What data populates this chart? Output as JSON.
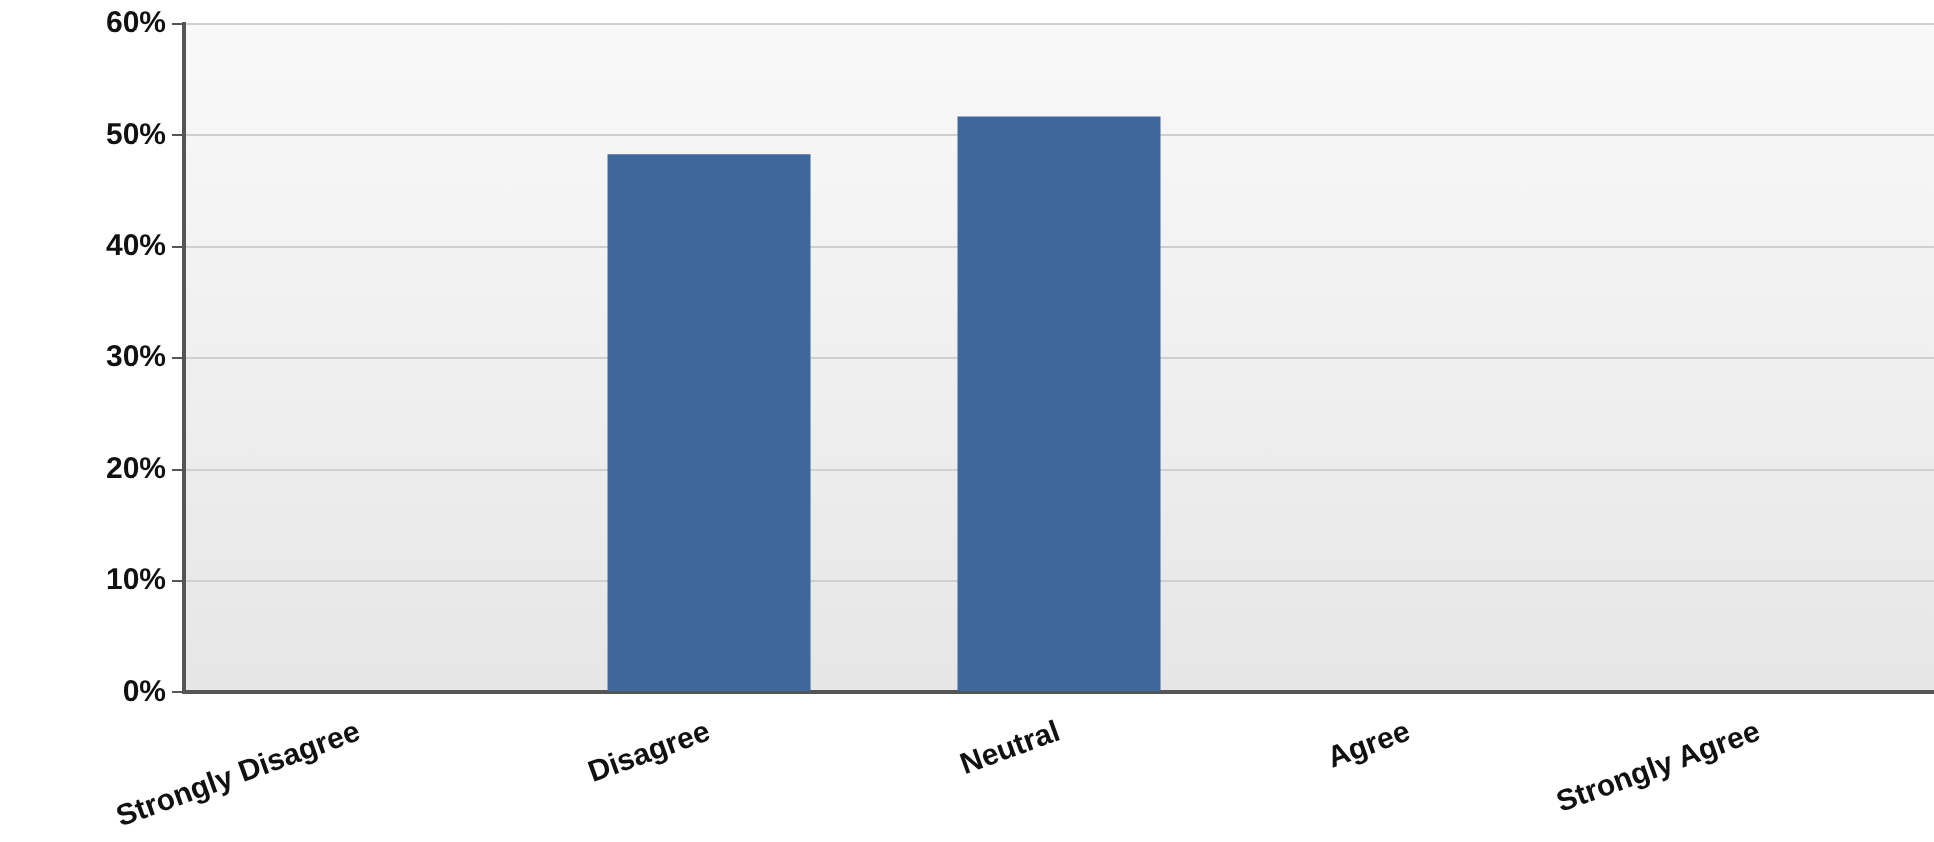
{
  "chart_data": {
    "type": "bar",
    "categories": [
      "Strongly Disagree",
      "Disagree",
      "Neutral",
      "Agree",
      "Strongly Agree"
    ],
    "values": [
      0,
      48.3,
      51.7,
      0,
      0
    ],
    "color": "#3f679b",
    "ylim": [
      0,
      60
    ],
    "yticks": [
      {
        "value": 0,
        "label": "0%"
      },
      {
        "value": 10,
        "label": "10%"
      },
      {
        "value": 20,
        "label": "20%"
      },
      {
        "value": 30,
        "label": "30%"
      },
      {
        "value": 40,
        "label": "40%"
      },
      {
        "value": 50,
        "label": "50%"
      },
      {
        "value": 60,
        "label": "60%"
      }
    ],
    "grid": "y",
    "legend": false
  }
}
